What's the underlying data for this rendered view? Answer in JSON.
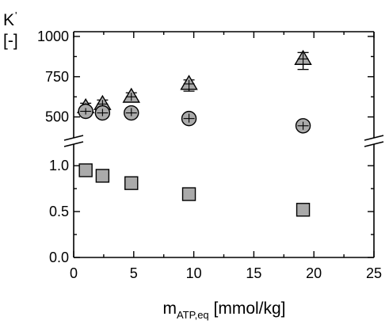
{
  "chart_data": {
    "type": "scatter",
    "title": "",
    "xlabel": {
      "main": "m",
      "sub": "ATP,eq",
      "unit": " [mmol/kg]"
    },
    "ylabel": {
      "symbol": "K",
      "prime": "'",
      "unit": "[-]"
    },
    "xlim": [
      0,
      25
    ],
    "x_ticks": [
      0,
      5,
      10,
      15,
      20,
      25
    ],
    "y_axis_broken": true,
    "upper_ylim": [
      375,
      1000
    ],
    "upper_ticks": [
      500,
      750,
      1000
    ],
    "lower_ylim": [
      0,
      1.2
    ],
    "lower_ticks": [
      0.0,
      0.5,
      1.0
    ],
    "marker_fill": "#aaaaaa",
    "grid": false,
    "series": [
      {
        "marker": "triangle",
        "panel": "upper",
        "x": [
          1.0,
          2.4,
          4.8,
          9.6,
          19.1
        ],
        "y": [
          560,
          580,
          625,
          705,
          860
        ],
        "err_low": [
          25,
          25,
          25,
          45,
          65
        ],
        "err_high": [
          25,
          25,
          25,
          25,
          40
        ]
      },
      {
        "marker": "circle",
        "panel": "upper",
        "x": [
          1.0,
          2.4,
          4.8,
          9.6,
          19.1
        ],
        "y": [
          535,
          525,
          525,
          490,
          445
        ],
        "err_low": [
          20,
          20,
          20,
          25,
          25
        ],
        "err_high": [
          20,
          25,
          30,
          30,
          25
        ]
      },
      {
        "marker": "square",
        "panel": "lower",
        "x": [
          1.0,
          2.4,
          4.8,
          9.6,
          19.1
        ],
        "y": [
          0.95,
          0.89,
          0.81,
          0.69,
          0.52
        ]
      }
    ]
  }
}
